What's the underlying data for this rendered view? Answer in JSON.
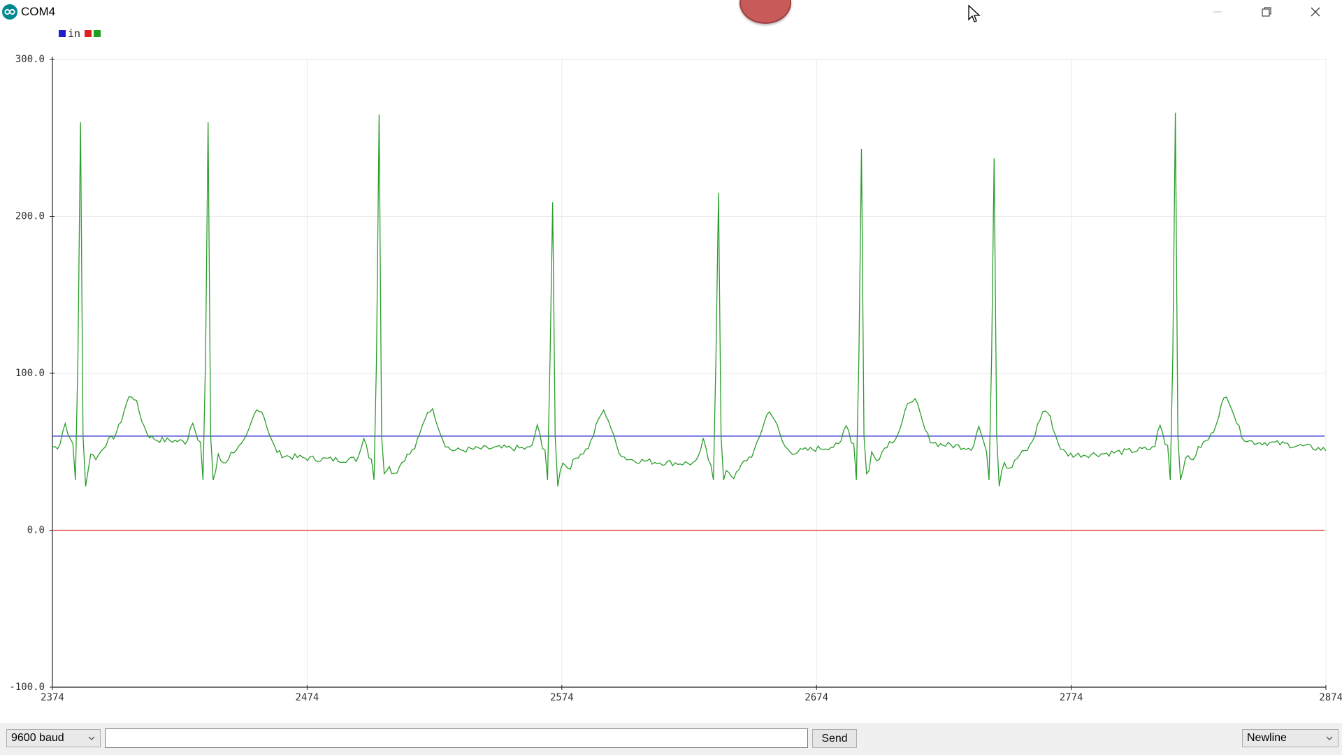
{
  "window": {
    "title": "COM4",
    "app_icon": "arduino-icon",
    "controls": [
      "minimize-icon",
      "restore-icon",
      "close-icon"
    ]
  },
  "legend": {
    "label": "in",
    "swatches": [
      "#1f1fcf",
      "#e02020",
      "#1f9f1f"
    ]
  },
  "chart_data": {
    "type": "line",
    "ylim": [
      -100,
      300
    ],
    "xlim": [
      2374,
      2874
    ],
    "y_ticks": [
      "300.0",
      "200.0",
      "100.0",
      "0.0",
      "-100.0"
    ],
    "x_ticks": [
      "2374",
      "2474",
      "2574",
      "2674",
      "2774",
      "2874"
    ],
    "grid": true,
    "series": [
      {
        "color": "#2b2bd1",
        "values": [
          60,
          60
        ]
      },
      {
        "color": "#e03a3a",
        "values": [
          0,
          0
        ]
      },
      {
        "color": "#2a9d2a",
        "peak_indices": [
          11,
          61,
          128,
          196,
          261,
          317,
          369,
          440
        ],
        "peaks": [
          260,
          260,
          265,
          209,
          215,
          243,
          237,
          266
        ]
      }
    ]
  },
  "controls": {
    "baud": "9600 baud",
    "send": "Send",
    "line_ending": "Newline",
    "message_value": ""
  }
}
